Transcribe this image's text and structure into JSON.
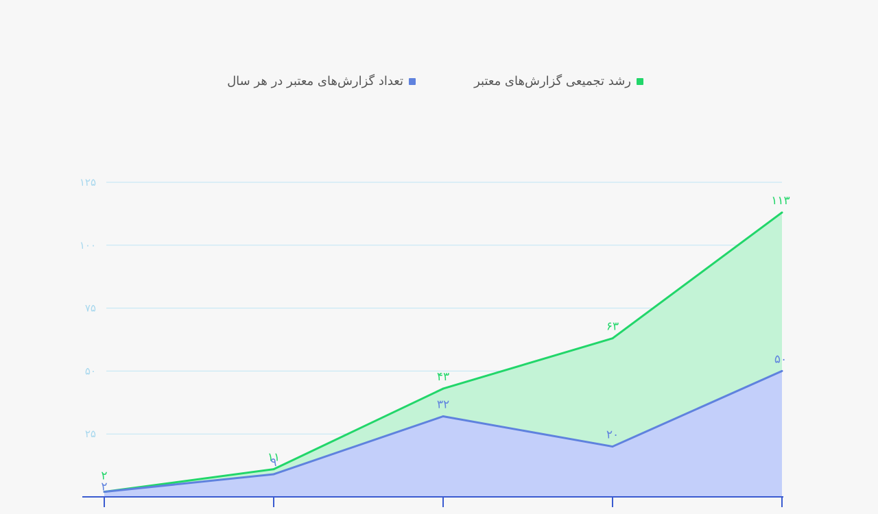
{
  "chart_data": {
    "type": "area",
    "x": [
      "",
      "",
      "",
      "",
      ""
    ],
    "series": [
      {
        "name": "رشد تجمیعی گزارش‌های معتبر",
        "values": [
          2,
          11,
          43,
          63,
          113
        ],
        "labels": [
          "۲",
          "۱۱",
          "۴۳",
          "۶۳",
          "۱۱۳"
        ],
        "color": "#22d66a",
        "fill": "#c3f3d6"
      },
      {
        "name": "تعداد گزارش‌های معتبر در هر سال",
        "values": [
          2,
          9,
          32,
          20,
          50
        ],
        "labels": [
          "۲",
          "۹",
          "۳۲",
          "۲۰",
          "۵۰"
        ],
        "color": "#5f82de",
        "fill": "#c3cffa"
      }
    ],
    "yticks": [
      25,
      50,
      75,
      100,
      125
    ],
    "ytick_labels": [
      "۲۵",
      "۵۰",
      "۷۵",
      "۱۰۰",
      "۱۲۵"
    ],
    "ylim": [
      0,
      125
    ],
    "grid": true,
    "legend_position": "top-center",
    "colors": {
      "grid": "#bfe6f5",
      "axis": "#3a5bd0",
      "tick_label": "#a8d8ee"
    }
  }
}
